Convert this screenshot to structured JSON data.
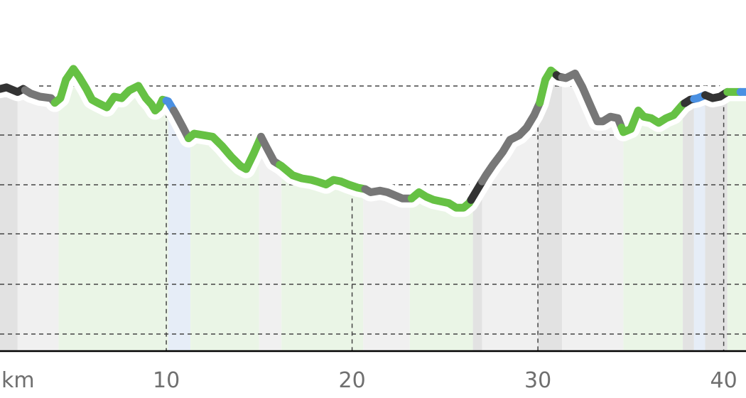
{
  "chart_data": {
    "type": "line",
    "title": "",
    "xlabel": "",
    "ylabel": "",
    "x_unit": "km",
    "x_ticks": [
      10,
      20,
      30,
      40
    ],
    "xlim": [
      1.05,
      41.2
    ],
    "y_scale_relative": [
      0,
      100
    ],
    "y_grid_lines": 6,
    "grid": true,
    "legend": "none",
    "surface_colors": {
      "paved": "#66c144",
      "unpaved": "#777777",
      "unknown": "#333333",
      "water": "#4a90e2"
    },
    "band_colors": {
      "paved": "#eaf5e6",
      "unpaved": "#f0f0f0",
      "unknown": "#e2e2e2",
      "water": "#e6edf7"
    },
    "profile": [
      [
        1.05,
        85
      ],
      [
        1.4,
        85.5
      ],
      [
        2.0,
        84
      ],
      [
        2.3,
        85
      ],
      [
        2.7,
        83.5
      ],
      [
        3.2,
        82.5
      ],
      [
        3.8,
        82
      ],
      [
        4.0,
        80.5
      ],
      [
        4.3,
        82
      ],
      [
        4.6,
        88
      ],
      [
        5.0,
        91.5
      ],
      [
        5.3,
        89
      ],
      [
        5.7,
        85
      ],
      [
        6.0,
        81.5
      ],
      [
        6.3,
        80.5
      ],
      [
        6.8,
        79
      ],
      [
        7.2,
        82.5
      ],
      [
        7.6,
        82
      ],
      [
        8.0,
        84.5
      ],
      [
        8.5,
        86
      ],
      [
        8.9,
        82
      ],
      [
        9.2,
        80
      ],
      [
        9.4,
        78
      ],
      [
        9.6,
        79
      ],
      [
        9.8,
        81.5
      ],
      [
        10.1,
        81
      ],
      [
        10.5,
        77
      ],
      [
        10.9,
        72.5
      ],
      [
        11.2,
        69
      ],
      [
        11.5,
        70.5
      ],
      [
        12.0,
        70
      ],
      [
        12.5,
        69.5
      ],
      [
        13.0,
        66.5
      ],
      [
        13.5,
        63
      ],
      [
        14.0,
        60
      ],
      [
        14.3,
        59
      ],
      [
        14.7,
        64
      ],
      [
        15.1,
        69.5
      ],
      [
        15.4,
        66
      ],
      [
        15.8,
        61.5
      ],
      [
        16.2,
        60
      ],
      [
        16.8,
        57
      ],
      [
        17.3,
        56
      ],
      [
        17.8,
        55.5
      ],
      [
        18.1,
        55
      ],
      [
        18.6,
        54
      ],
      [
        19.0,
        55.5
      ],
      [
        19.4,
        55
      ],
      [
        19.8,
        54
      ],
      [
        20.3,
        53
      ],
      [
        20.7,
        52.5
      ],
      [
        21.0,
        51.5
      ],
      [
        21.5,
        52
      ],
      [
        21.9,
        51.5
      ],
      [
        22.3,
        50.5
      ],
      [
        22.7,
        49.5
      ],
      [
        23.2,
        49.5
      ],
      [
        23.6,
        51.5
      ],
      [
        24.0,
        50
      ],
      [
        24.4,
        49
      ],
      [
        24.8,
        48.5
      ],
      [
        25.2,
        48
      ],
      [
        25.6,
        46.5
      ],
      [
        26.0,
        46.5
      ],
      [
        26.3,
        48
      ],
      [
        26.7,
        52
      ],
      [
        27.2,
        57
      ],
      [
        27.6,
        60.5
      ],
      [
        28.1,
        64.5
      ],
      [
        28.5,
        68.5
      ],
      [
        29.0,
        70
      ],
      [
        29.4,
        72.5
      ],
      [
        29.8,
        76.5
      ],
      [
        30.1,
        80.5
      ],
      [
        30.4,
        88
      ],
      [
        30.7,
        91
      ],
      [
        31.1,
        89
      ],
      [
        31.5,
        88.5
      ],
      [
        32.0,
        90
      ],
      [
        32.4,
        85.5
      ],
      [
        32.8,
        80
      ],
      [
        33.2,
        74.5
      ],
      [
        33.5,
        74.5
      ],
      [
        33.9,
        76
      ],
      [
        34.3,
        75.5
      ],
      [
        34.6,
        71
      ],
      [
        35.0,
        72
      ],
      [
        35.4,
        78
      ],
      [
        35.7,
        76
      ],
      [
        36.1,
        75.5
      ],
      [
        36.5,
        74
      ],
      [
        36.9,
        75.5
      ],
      [
        37.3,
        76.5
      ],
      [
        37.8,
        80
      ],
      [
        38.2,
        81.5
      ],
      [
        38.6,
        82
      ],
      [
        39.0,
        83
      ],
      [
        39.4,
        82
      ],
      [
        39.8,
        82.5
      ],
      [
        40.2,
        84
      ],
      [
        40.6,
        84
      ],
      [
        41.2,
        84
      ]
    ],
    "segments": [
      {
        "from": 1.05,
        "to": 2.4,
        "surface": "unknown"
      },
      {
        "from": 2.4,
        "to": 4.0,
        "surface": "unpaved"
      },
      {
        "from": 4.0,
        "to": 10.0,
        "surface": "paved"
      },
      {
        "from": 10.0,
        "to": 10.4,
        "surface": "water"
      },
      {
        "from": 10.4,
        "to": 11.2,
        "surface": "unpaved"
      },
      {
        "from": 11.2,
        "to": 15.1,
        "surface": "paved"
      },
      {
        "from": 15.1,
        "to": 16.1,
        "surface": "unpaved"
      },
      {
        "from": 16.1,
        "to": 20.7,
        "surface": "paved"
      },
      {
        "from": 20.7,
        "to": 23.2,
        "surface": "unpaved"
      },
      {
        "from": 23.2,
        "to": 26.4,
        "surface": "paved"
      },
      {
        "from": 26.4,
        "to": 27.0,
        "surface": "unknown"
      },
      {
        "from": 27.0,
        "to": 30.1,
        "surface": "unpaved"
      },
      {
        "from": 30.1,
        "to": 31.0,
        "surface": "paved"
      },
      {
        "from": 31.0,
        "to": 31.3,
        "surface": "unknown"
      },
      {
        "from": 31.3,
        "to": 34.5,
        "surface": "unpaved"
      },
      {
        "from": 34.5,
        "to": 37.9,
        "surface": "paved"
      },
      {
        "from": 37.9,
        "to": 38.4,
        "surface": "unknown"
      },
      {
        "from": 38.4,
        "to": 39.0,
        "surface": "water"
      },
      {
        "from": 39.0,
        "to": 40.2,
        "surface": "unknown"
      },
      {
        "from": 40.2,
        "to": 40.9,
        "surface": "paved"
      },
      {
        "from": 40.9,
        "to": 41.2,
        "surface": "water"
      }
    ],
    "bands": [
      {
        "from": 1.05,
        "to": 2.0,
        "surface": "unknown"
      },
      {
        "from": 2.0,
        "to": 4.2,
        "surface": "unpaved"
      },
      {
        "from": 4.2,
        "to": 10.1,
        "surface": "paved"
      },
      {
        "from": 10.1,
        "to": 11.3,
        "surface": "water"
      },
      {
        "from": 11.3,
        "to": 15.0,
        "surface": "paved"
      },
      {
        "from": 15.0,
        "to": 16.2,
        "surface": "unpaved"
      },
      {
        "from": 16.2,
        "to": 20.6,
        "surface": "paved"
      },
      {
        "from": 20.6,
        "to": 23.1,
        "surface": "unpaved"
      },
      {
        "from": 23.1,
        "to": 26.5,
        "surface": "paved"
      },
      {
        "from": 26.5,
        "to": 27.0,
        "surface": "unknown"
      },
      {
        "from": 27.0,
        "to": 30.0,
        "surface": "unpaved"
      },
      {
        "from": 30.0,
        "to": 31.3,
        "surface": "unknown"
      },
      {
        "from": 31.3,
        "to": 34.6,
        "surface": "unpaved"
      },
      {
        "from": 34.6,
        "to": 37.8,
        "surface": "paved"
      },
      {
        "from": 37.8,
        "to": 38.4,
        "surface": "unknown"
      },
      {
        "from": 38.4,
        "to": 39.0,
        "surface": "water"
      },
      {
        "from": 39.0,
        "to": 40.2,
        "surface": "unknown"
      },
      {
        "from": 40.2,
        "to": 41.2,
        "surface": "paved"
      }
    ]
  }
}
